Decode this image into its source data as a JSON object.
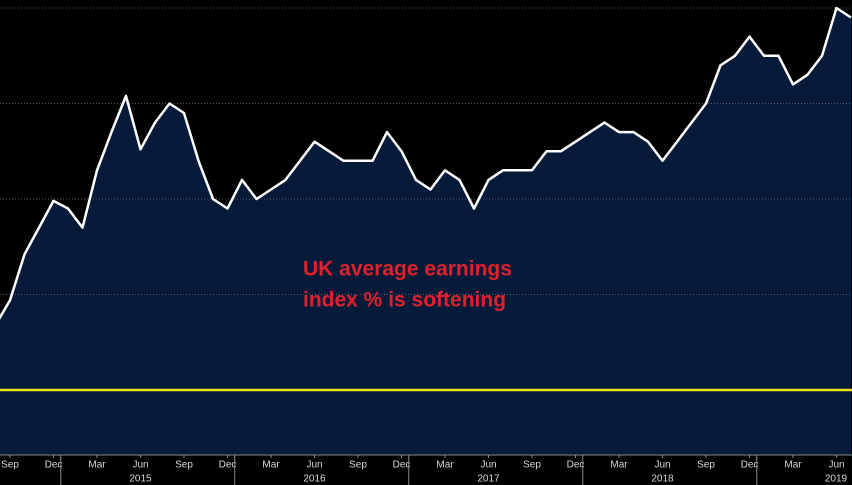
{
  "chart_data": {
    "type": "area",
    "annotation": [
      "UK average earnings",
      "index % is softening"
    ],
    "x": [
      "2014-08",
      "2014-09",
      "2014-10",
      "2014-11",
      "2014-12",
      "2015-01",
      "2015-02",
      "2015-03",
      "2015-04",
      "2015-05",
      "2015-06",
      "2015-07",
      "2015-08",
      "2015-09",
      "2015-10",
      "2015-11",
      "2015-12",
      "2016-01",
      "2016-02",
      "2016-03",
      "2016-04",
      "2016-05",
      "2016-06",
      "2016-07",
      "2016-08",
      "2016-09",
      "2016-10",
      "2016-11",
      "2016-12",
      "2017-01",
      "2017-02",
      "2017-03",
      "2017-04",
      "2017-05",
      "2017-06",
      "2017-07",
      "2017-08",
      "2017-09",
      "2017-10",
      "2017-11",
      "2017-12",
      "2018-01",
      "2018-02",
      "2018-03",
      "2018-04",
      "2018-05",
      "2018-06",
      "2018-07",
      "2018-08",
      "2018-09",
      "2018-10",
      "2018-11",
      "2018-12",
      "2019-01",
      "2019-02",
      "2019-03",
      "2019-04",
      "2019-05",
      "2019-06",
      "2019-07"
    ],
    "series": [
      {
        "color": "#ffffff",
        "fill": "#061b3a",
        "values": [
          1.84,
          1.97,
          2.21,
          2.35,
          2.49,
          2.45,
          2.35,
          2.65,
          2.85,
          3.04,
          2.76,
          2.9,
          3.0,
          2.95,
          2.7,
          2.5,
          2.45,
          2.6,
          2.5,
          2.55,
          2.6,
          2.7,
          2.8,
          2.75,
          2.7,
          2.7,
          2.7,
          2.85,
          2.75,
          2.6,
          2.55,
          2.65,
          2.6,
          2.45,
          2.6,
          2.65,
          2.65,
          2.65,
          2.75,
          2.75,
          2.8,
          2.85,
          2.9,
          2.85,
          2.85,
          2.8,
          2.7,
          2.8,
          2.9,
          3.0,
          3.2,
          3.25,
          3.35,
          3.25,
          3.25,
          3.1,
          3.15,
          3.25,
          3.5,
          3.45
        ]
      }
    ],
    "ylim": [
      1.2,
      3.5
    ],
    "yticks": [
      2.0,
      2.5,
      3.0,
      3.5
    ],
    "grid": true,
    "reference_line": {
      "value": 1.5,
      "color": "#f0e31a"
    },
    "xticks": [
      {
        "value": "2014-09",
        "label": "Sep"
      },
      {
        "value": "2014-12",
        "label": "Dec"
      },
      {
        "value": "2015-03",
        "label": "Mar"
      },
      {
        "value": "2015-06",
        "label": "Jun"
      },
      {
        "value": "2015-09",
        "label": "Sep"
      },
      {
        "value": "2015-12",
        "label": "Dec"
      },
      {
        "value": "2016-03",
        "label": "Mar"
      },
      {
        "value": "2016-06",
        "label": "Jun"
      },
      {
        "value": "2016-09",
        "label": "Sep"
      },
      {
        "value": "2016-12",
        "label": "Dec"
      },
      {
        "value": "2017-03",
        "label": "Mar"
      },
      {
        "value": "2017-06",
        "label": "Jun"
      },
      {
        "value": "2017-09",
        "label": "Sep"
      },
      {
        "value": "2017-12",
        "label": "Dec"
      },
      {
        "value": "2018-03",
        "label": "Mar"
      },
      {
        "value": "2018-06",
        "label": "Jun"
      },
      {
        "value": "2018-09",
        "label": "Sep"
      },
      {
        "value": "2018-12",
        "label": "Dec"
      },
      {
        "value": "2019-03",
        "label": "Mar"
      },
      {
        "value": "2019-06",
        "label": "Jun"
      }
    ],
    "years": [
      "2015",
      "2016",
      "2017",
      "2018",
      "2019"
    ]
  }
}
